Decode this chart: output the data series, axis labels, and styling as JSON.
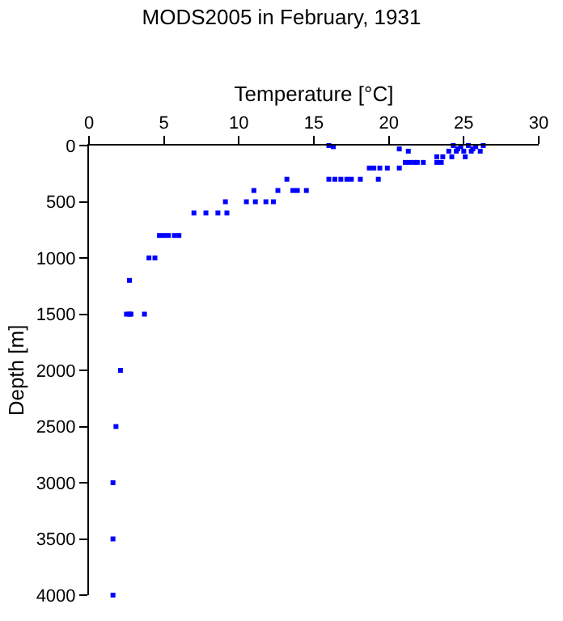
{
  "chart_data": {
    "type": "scatter",
    "title": "MODS2005 in February, 1931",
    "xlabel": "Temperature [°C]",
    "ylabel": "Depth [m]",
    "xlim": [
      0,
      30
    ],
    "xticks": [
      0,
      5,
      10,
      15,
      20,
      25,
      30
    ],
    "ylim": [
      4000,
      0
    ],
    "yticks": [
      0,
      500,
      1000,
      1500,
      2000,
      2500,
      3000,
      3500,
      4000
    ],
    "marker": "square",
    "series": [
      {
        "color": "#0000ff",
        "x": [
          16.0,
          16.3,
          24.3,
          25.3,
          26.3,
          24.8,
          25.8,
          20.7,
          24.6,
          25.6,
          21.3,
          24.0,
          24.5,
          25.0,
          25.5,
          26.1,
          23.2,
          23.6,
          24.2,
          25.1,
          21.1,
          21.4,
          21.7,
          21.9,
          22.3,
          23.2,
          23.5,
          18.7,
          19.0,
          19.4,
          19.9,
          20.7,
          13.2,
          16.0,
          16.4,
          16.8,
          17.2,
          17.5,
          18.1,
          19.3,
          11.0,
          12.6,
          13.6,
          13.9,
          14.5,
          9.1,
          10.5,
          11.1,
          11.8,
          12.3,
          7.0,
          7.8,
          8.6,
          9.2,
          4.7,
          5.0,
          5.3,
          5.7,
          6.0,
          4.0,
          4.4,
          2.7,
          2.5,
          2.7,
          2.8,
          3.7,
          2.1,
          1.8,
          1.6,
          1.6,
          1.6
        ],
        "values": [
          0,
          10,
          0,
          0,
          0,
          10,
          10,
          30,
          30,
          30,
          50,
          50,
          50,
          50,
          50,
          50,
          100,
          100,
          100,
          100,
          150,
          150,
          150,
          150,
          150,
          150,
          150,
          200,
          200,
          200,
          200,
          200,
          300,
          300,
          300,
          300,
          300,
          300,
          300,
          300,
          400,
          400,
          400,
          400,
          400,
          500,
          500,
          500,
          500,
          500,
          600,
          600,
          600,
          600,
          800,
          800,
          800,
          800,
          800,
          1000,
          1000,
          1200,
          1500,
          1500,
          1500,
          1500,
          2000,
          2500,
          3000,
          3500,
          4000
        ]
      }
    ]
  }
}
